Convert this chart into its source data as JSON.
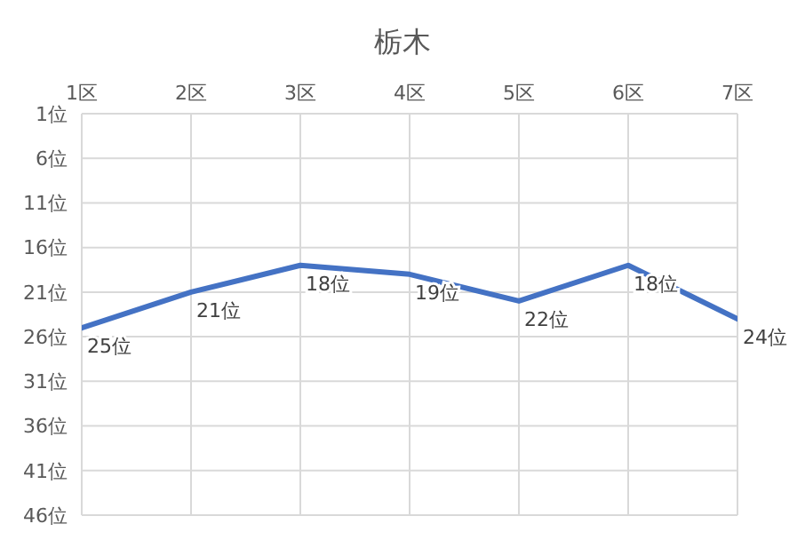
{
  "chart_data": {
    "type": "line",
    "title": "栃木",
    "categories": [
      "1区",
      "2区",
      "3区",
      "4区",
      "5区",
      "6区",
      "7区"
    ],
    "values": [
      25,
      21,
      18,
      19,
      22,
      18,
      24
    ],
    "value_labels": [
      "25位",
      "21位",
      "18位",
      "19位",
      "22位",
      "18位",
      "24位"
    ],
    "color": "#4472c4",
    "ylim": [
      46,
      1
    ],
    "yticks": [
      {
        "value": 1,
        "label": "1位"
      },
      {
        "value": 6,
        "label": "6位"
      },
      {
        "value": 11,
        "label": "11位"
      },
      {
        "value": 16,
        "label": "16位"
      },
      {
        "value": 21,
        "label": "21位"
      },
      {
        "value": 26,
        "label": "26位"
      },
      {
        "value": 31,
        "label": "31位"
      },
      {
        "value": 36,
        "label": "36位"
      },
      {
        "value": 41,
        "label": "41位"
      },
      {
        "value": 46,
        "label": "46位"
      }
    ],
    "grid": true,
    "marker": "none",
    "line_style": "solid"
  }
}
